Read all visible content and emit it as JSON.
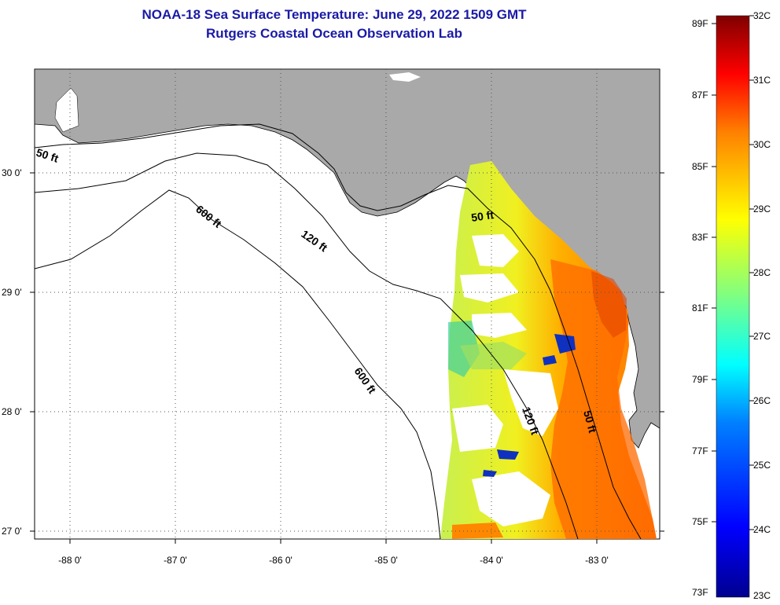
{
  "header": {
    "title_line1": "NOAA-18 Sea Surface Temperature:  June 29, 2022 1509 GMT",
    "title_line2": "Rutgers Coastal Ocean Observation Lab"
  },
  "map": {
    "lon_labels": [
      "-88 0'",
      "-87 0'",
      "-86 0'",
      "-85 0'",
      "-84 0'",
      "-83 0'"
    ],
    "lat_labels": [
      "30 0'",
      "29 0'",
      "28 0'",
      "27 0'"
    ],
    "contours": {
      "c50_west": "50 ft",
      "c600_a": "600 ft",
      "c120_a": "120 ft",
      "c50_east": "50 ft",
      "c600_b": "600 ft",
      "c120_b": "120 ft",
      "c50_south": "50 ft"
    },
    "colors": {
      "land": "#a9a9a9",
      "ocean": "#ffffff"
    }
  },
  "colorbar": {
    "f_labels": [
      "89F",
      "87F",
      "85F",
      "83F",
      "81F",
      "79F",
      "77F",
      "75F",
      "73F"
    ],
    "c_labels": [
      "32C",
      "31C",
      "30C",
      "29C",
      "28C",
      "27C",
      "26C",
      "25C",
      "24C",
      "23C"
    ],
    "gradient": [
      "#7f0000",
      "#ff0000",
      "#ff8000",
      "#ffff00",
      "#80ff80",
      "#00ffff",
      "#0080ff",
      "#0000ff",
      "#00008f"
    ]
  }
}
